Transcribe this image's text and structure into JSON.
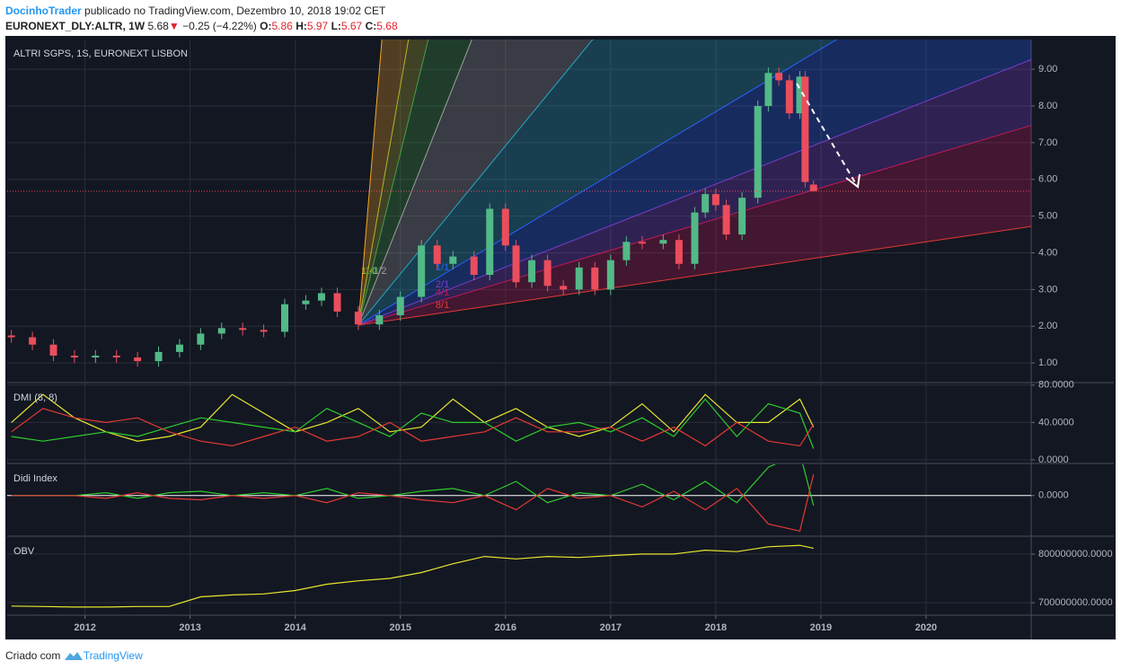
{
  "header": {
    "author": "DocinhoTrader",
    "published": " publicado no TradingView.com, Dezembro 10, 2018 19:02 CET",
    "symbol": "EURONEXT_DLY:ALTR, 1W",
    "last": "5.68",
    "arrow": "▼",
    "change": "−0.25 (−4.22%)",
    "o_label": "O:",
    "o": "5.86",
    "h_label": "H:",
    "h": "5.97",
    "l_label": "L:",
    "l": "5.67",
    "c_label": "C:",
    "c": "5.68"
  },
  "footer": {
    "text": "Criado com",
    "brand": "TradingView"
  },
  "chart_data": [
    {
      "type": "candlestick",
      "title": "ALTRI SGPS, 1S, EURONEXT LISBON",
      "x": [
        2011.3,
        2011.5,
        2011.7,
        2011.9,
        2012.1,
        2012.3,
        2012.5,
        2012.7,
        2012.9,
        2013.1,
        2013.3,
        2013.5,
        2013.7,
        2013.9,
        2014.1,
        2014.25,
        2014.4,
        2014.6,
        2014.8,
        2015.0,
        2015.2,
        2015.35,
        2015.5,
        2015.7,
        2015.85,
        2016.0,
        2016.1,
        2016.25,
        2016.4,
        2016.55,
        2016.7,
        2016.85,
        2017.0,
        2017.15,
        2017.3,
        2017.5,
        2017.65,
        2017.8,
        2017.9,
        2018.0,
        2018.1,
        2018.25,
        2018.4,
        2018.5,
        2018.6,
        2018.7,
        2018.8,
        2018.85,
        2018.93
      ],
      "open": [
        1.75,
        1.7,
        1.5,
        1.2,
        1.15,
        1.2,
        1.15,
        1.05,
        1.3,
        1.5,
        1.8,
        1.95,
        1.9,
        1.85,
        2.6,
        2.7,
        2.9,
        2.4,
        2.05,
        2.3,
        2.8,
        4.2,
        3.7,
        3.9,
        3.4,
        5.2,
        4.2,
        3.2,
        3.8,
        3.1,
        3.0,
        3.6,
        3.0,
        3.8,
        4.3,
        4.25,
        4.35,
        3.7,
        5.1,
        5.6,
        5.3,
        4.5,
        5.5,
        8.0,
        8.9,
        8.7,
        7.8,
        8.8,
        5.86
      ],
      "high": [
        1.9,
        1.85,
        1.65,
        1.35,
        1.35,
        1.35,
        1.3,
        1.45,
        1.65,
        1.95,
        2.1,
        2.1,
        2.05,
        2.75,
        2.85,
        3.05,
        3.05,
        2.55,
        2.45,
        2.95,
        4.35,
        4.35,
        4.05,
        4.05,
        5.35,
        5.35,
        4.35,
        3.95,
        3.95,
        3.25,
        3.75,
        3.75,
        3.95,
        4.45,
        4.45,
        4.5,
        4.5,
        5.25,
        5.75,
        5.75,
        5.45,
        5.65,
        8.15,
        9.05,
        9.05,
        8.85,
        8.95,
        8.95,
        5.97
      ],
      "low": [
        1.55,
        1.35,
        1.05,
        1.0,
        1.0,
        1.0,
        0.9,
        0.9,
        1.15,
        1.35,
        1.65,
        1.75,
        1.7,
        1.7,
        2.45,
        2.55,
        2.25,
        1.9,
        1.9,
        2.15,
        2.65,
        3.55,
        3.55,
        3.25,
        3.25,
        4.05,
        3.05,
        3.05,
        2.95,
        2.85,
        2.85,
        2.85,
        2.85,
        3.65,
        4.1,
        4.1,
        3.55,
        3.55,
        4.95,
        5.15,
        4.35,
        4.35,
        5.35,
        7.85,
        8.55,
        7.65,
        7.65,
        5.78,
        5.67
      ],
      "close": [
        1.7,
        1.5,
        1.2,
        1.15,
        1.2,
        1.15,
        1.05,
        1.3,
        1.5,
        1.8,
        1.95,
        1.9,
        1.85,
        2.6,
        2.7,
        2.9,
        2.4,
        2.05,
        2.3,
        2.8,
        4.2,
        3.7,
        3.9,
        3.4,
        5.2,
        4.2,
        3.2,
        3.8,
        3.1,
        3.0,
        3.6,
        3.0,
        3.8,
        4.3,
        4.25,
        4.35,
        3.7,
        5.1,
        5.6,
        5.3,
        4.5,
        5.5,
        8.0,
        8.9,
        8.7,
        7.8,
        8.8,
        5.93,
        5.68
      ],
      "up_color": "#53b987",
      "down_color": "#eb4d5c",
      "last_line_color": "#eb4d5c",
      "xlim": [
        2011.26,
        2021.0
      ],
      "ylim": [
        0.49,
        9.81
      ],
      "xticks": [
        2012,
        2013,
        2014,
        2015,
        2016,
        2017,
        2018,
        2019,
        2020
      ],
      "yticks": [
        {
          "value": 1,
          "label": "1.00"
        },
        {
          "value": 2,
          "label": "2.00"
        },
        {
          "value": 3,
          "label": "3.00"
        },
        {
          "value": 4,
          "label": "4.00"
        },
        {
          "value": 5,
          "label": "5.00"
        },
        {
          "value": 6,
          "label": "6.00"
        },
        {
          "value": 7,
          "label": "7.00"
        },
        {
          "value": 8,
          "label": "8.00"
        },
        {
          "value": 9,
          "label": "9.00"
        }
      ],
      "grid": true,
      "fan": {
        "origin_x": 2014.6,
        "origin_y": 2.03,
        "lines": [
          {
            "slope": 34.7,
            "color": "#f5a623"
          },
          {
            "slope": 16.3,
            "color": "#b5b52a",
            "label": "1/4"
          },
          {
            "slope": 11.7,
            "color": "#43a047",
            "label": "1/3"
          },
          {
            "slope": 7.2,
            "color": "#9e9e9e",
            "label": "1/2"
          },
          {
            "slope": 3.49,
            "color": "#26a6c7"
          },
          {
            "slope": 1.71,
            "color": "#2962ff",
            "label": "1/1"
          },
          {
            "slope": 1.13,
            "color": "#7b3fd0",
            "label": "2/1"
          },
          {
            "slope": 0.85,
            "color": "#c2185b",
            "label": "4/1"
          },
          {
            "slope": 0.42,
            "color": "#e53935",
            "label": "8/1"
          }
        ]
      }
    },
    {
      "type": "line",
      "title": "DMI (8, 8)",
      "x": [
        2011.3,
        2011.6,
        2011.9,
        2012.2,
        2012.5,
        2012.8,
        2013.1,
        2013.4,
        2013.7,
        2014.0,
        2014.3,
        2014.6,
        2014.9,
        2015.2,
        2015.5,
        2015.8,
        2016.1,
        2016.4,
        2016.7,
        2017.0,
        2017.3,
        2017.6,
        2017.9,
        2018.2,
        2018.5,
        2018.8,
        2018.93
      ],
      "series": [
        {
          "color": "#e6e62e",
          "values": [
            40,
            70,
            45,
            30,
            20,
            25,
            35,
            70,
            50,
            30,
            40,
            55,
            30,
            35,
            65,
            40,
            55,
            35,
            25,
            35,
            60,
            30,
            70,
            40,
            40,
            65,
            35
          ]
        },
        {
          "color": "#2ecc2e",
          "values": [
            25,
            20,
            25,
            30,
            25,
            35,
            45,
            40,
            35,
            30,
            55,
            40,
            25,
            50,
            40,
            40,
            20,
            35,
            40,
            30,
            45,
            25,
            65,
            25,
            60,
            50,
            12
          ]
        },
        {
          "color": "#e53935",
          "values": [
            30,
            55,
            45,
            40,
            45,
            30,
            20,
            15,
            25,
            35,
            20,
            25,
            40,
            20,
            25,
            30,
            45,
            30,
            30,
            35,
            20,
            35,
            15,
            40,
            20,
            15,
            38
          ]
        }
      ],
      "xlim": [
        2011.26,
        2021.0
      ],
      "ylim": [
        -2.9,
        81.7
      ],
      "yticks": [
        {
          "value": 0,
          "label": "0.0000"
        },
        {
          "value": 40,
          "label": "40.0000"
        },
        {
          "value": 80,
          "label": "80.0000"
        }
      ],
      "grid": true
    },
    {
      "type": "line",
      "title": "Didi Index",
      "x": [
        2011.3,
        2011.6,
        2011.9,
        2012.2,
        2012.5,
        2012.8,
        2013.1,
        2013.4,
        2013.7,
        2014.0,
        2014.3,
        2014.6,
        2014.9,
        2015.2,
        2015.5,
        2015.8,
        2016.1,
        2016.4,
        2016.7,
        2017.0,
        2017.3,
        2017.6,
        2017.9,
        2018.2,
        2018.5,
        2018.8,
        2018.93
      ],
      "series": [
        {
          "color": "#2ecc2e",
          "values": [
            0,
            0,
            0,
            0.02,
            -0.02,
            0.02,
            0.03,
            0,
            0.02,
            0,
            0.05,
            -0.02,
            0,
            0.03,
            0.05,
            0,
            0.1,
            -0.05,
            0.02,
            0,
            0.08,
            -0.03,
            0.1,
            -0.05,
            0.2,
            0.3,
            -0.07
          ]
        },
        {
          "color": "#e53935",
          "values": [
            0,
            0,
            0,
            -0.02,
            0.02,
            -0.02,
            -0.03,
            0,
            -0.02,
            0,
            -0.05,
            0.02,
            0,
            -0.03,
            -0.05,
            0,
            -0.1,
            0.05,
            -0.02,
            0,
            -0.08,
            0.03,
            -0.1,
            0.05,
            -0.2,
            -0.25,
            0.15
          ]
        }
      ],
      "xlim": [
        2011.26,
        2021.0
      ],
      "ylim": [
        -0.28,
        0.22
      ],
      "yticks": [
        {
          "value": 0,
          "label": "0.0000"
        }
      ],
      "grid": true,
      "zero_line_color": "#ffffff"
    },
    {
      "type": "line",
      "title": "OBV",
      "x": [
        2011.3,
        2011.6,
        2011.9,
        2012.2,
        2012.5,
        2012.8,
        2013.1,
        2013.4,
        2013.7,
        2014.0,
        2014.3,
        2014.6,
        2014.9,
        2015.2,
        2015.5,
        2015.8,
        2016.1,
        2016.4,
        2016.7,
        2017.0,
        2017.3,
        2017.6,
        2017.9,
        2018.2,
        2018.5,
        2018.8,
        2018.93
      ],
      "series": [
        {
          "color": "#e6e62e",
          "values": [
            693000000,
            692000000,
            691000000,
            691000000,
            692000000,
            692000000,
            712000000,
            716000000,
            718000000,
            725000000,
            738000000,
            745000000,
            750000000,
            762000000,
            780000000,
            795000000,
            790000000,
            795000000,
            793000000,
            797000000,
            800000000,
            800000000,
            808000000,
            805000000,
            815000000,
            818000000,
            812000000
          ]
        }
      ],
      "xlim": [
        2011.26,
        2021.0
      ],
      "ylim": [
        676000000,
        835000000
      ],
      "yticks": [
        {
          "value": 700000000,
          "label": "700000000.0000"
        },
        {
          "value": 800000000,
          "label": "800000000.0000"
        }
      ],
      "grid": true
    }
  ]
}
